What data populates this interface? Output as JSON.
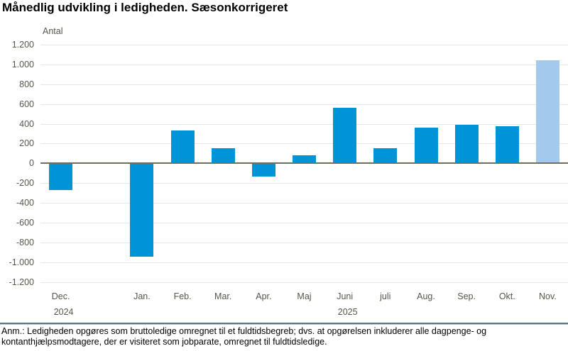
{
  "title": "Månedlig udvikling i ledigheden. Sæsonkorrigeret",
  "chart_data": {
    "type": "bar",
    "title": "Månedlig udvikling i ledigheden. Sæsonkorrigeret",
    "ylabel": "Antal",
    "xlabel": "",
    "ylim": [
      -1200,
      1200
    ],
    "ytick_step": 200,
    "ytick_labels": [
      "1.200",
      "1.000",
      "800",
      "600",
      "400",
      "200",
      "0",
      "-200",
      "-400",
      "-600",
      "-800",
      "-1.000",
      "-1.200"
    ],
    "grid": true,
    "categories": [
      "Dec.",
      "",
      "Jan.",
      "Feb.",
      "Mar.",
      "Apr.",
      "Maj",
      "Juni",
      "juli",
      "Aug.",
      "Sep.",
      "Okt.",
      "Nov."
    ],
    "values": [
      -265,
      null,
      -940,
      340,
      160,
      -130,
      90,
      570,
      160,
      365,
      400,
      380,
      1050
    ],
    "year_labels": [
      {
        "text": "2024",
        "slot": 0
      },
      {
        "text": "2025",
        "slot": 7
      }
    ],
    "colors": {
      "bar": "#0094d6",
      "highlight_bar": "#a3c9ec",
      "gridline": "#e9e6e0",
      "zero_line": "#6f6e5f",
      "axis_text": "#56554a"
    },
    "highlight_slot": 12
  },
  "footer": {
    "note": "Anm.: Ledigheden opgøres som bruttoledige omregnet til et fuldtidsbegreb; dvs. at opgørelsen inkluderer alle dagpenge- og kontanthjælpsmodtagere, der er visiteret som jobparate, omregnet til fuldtidsledige."
  }
}
